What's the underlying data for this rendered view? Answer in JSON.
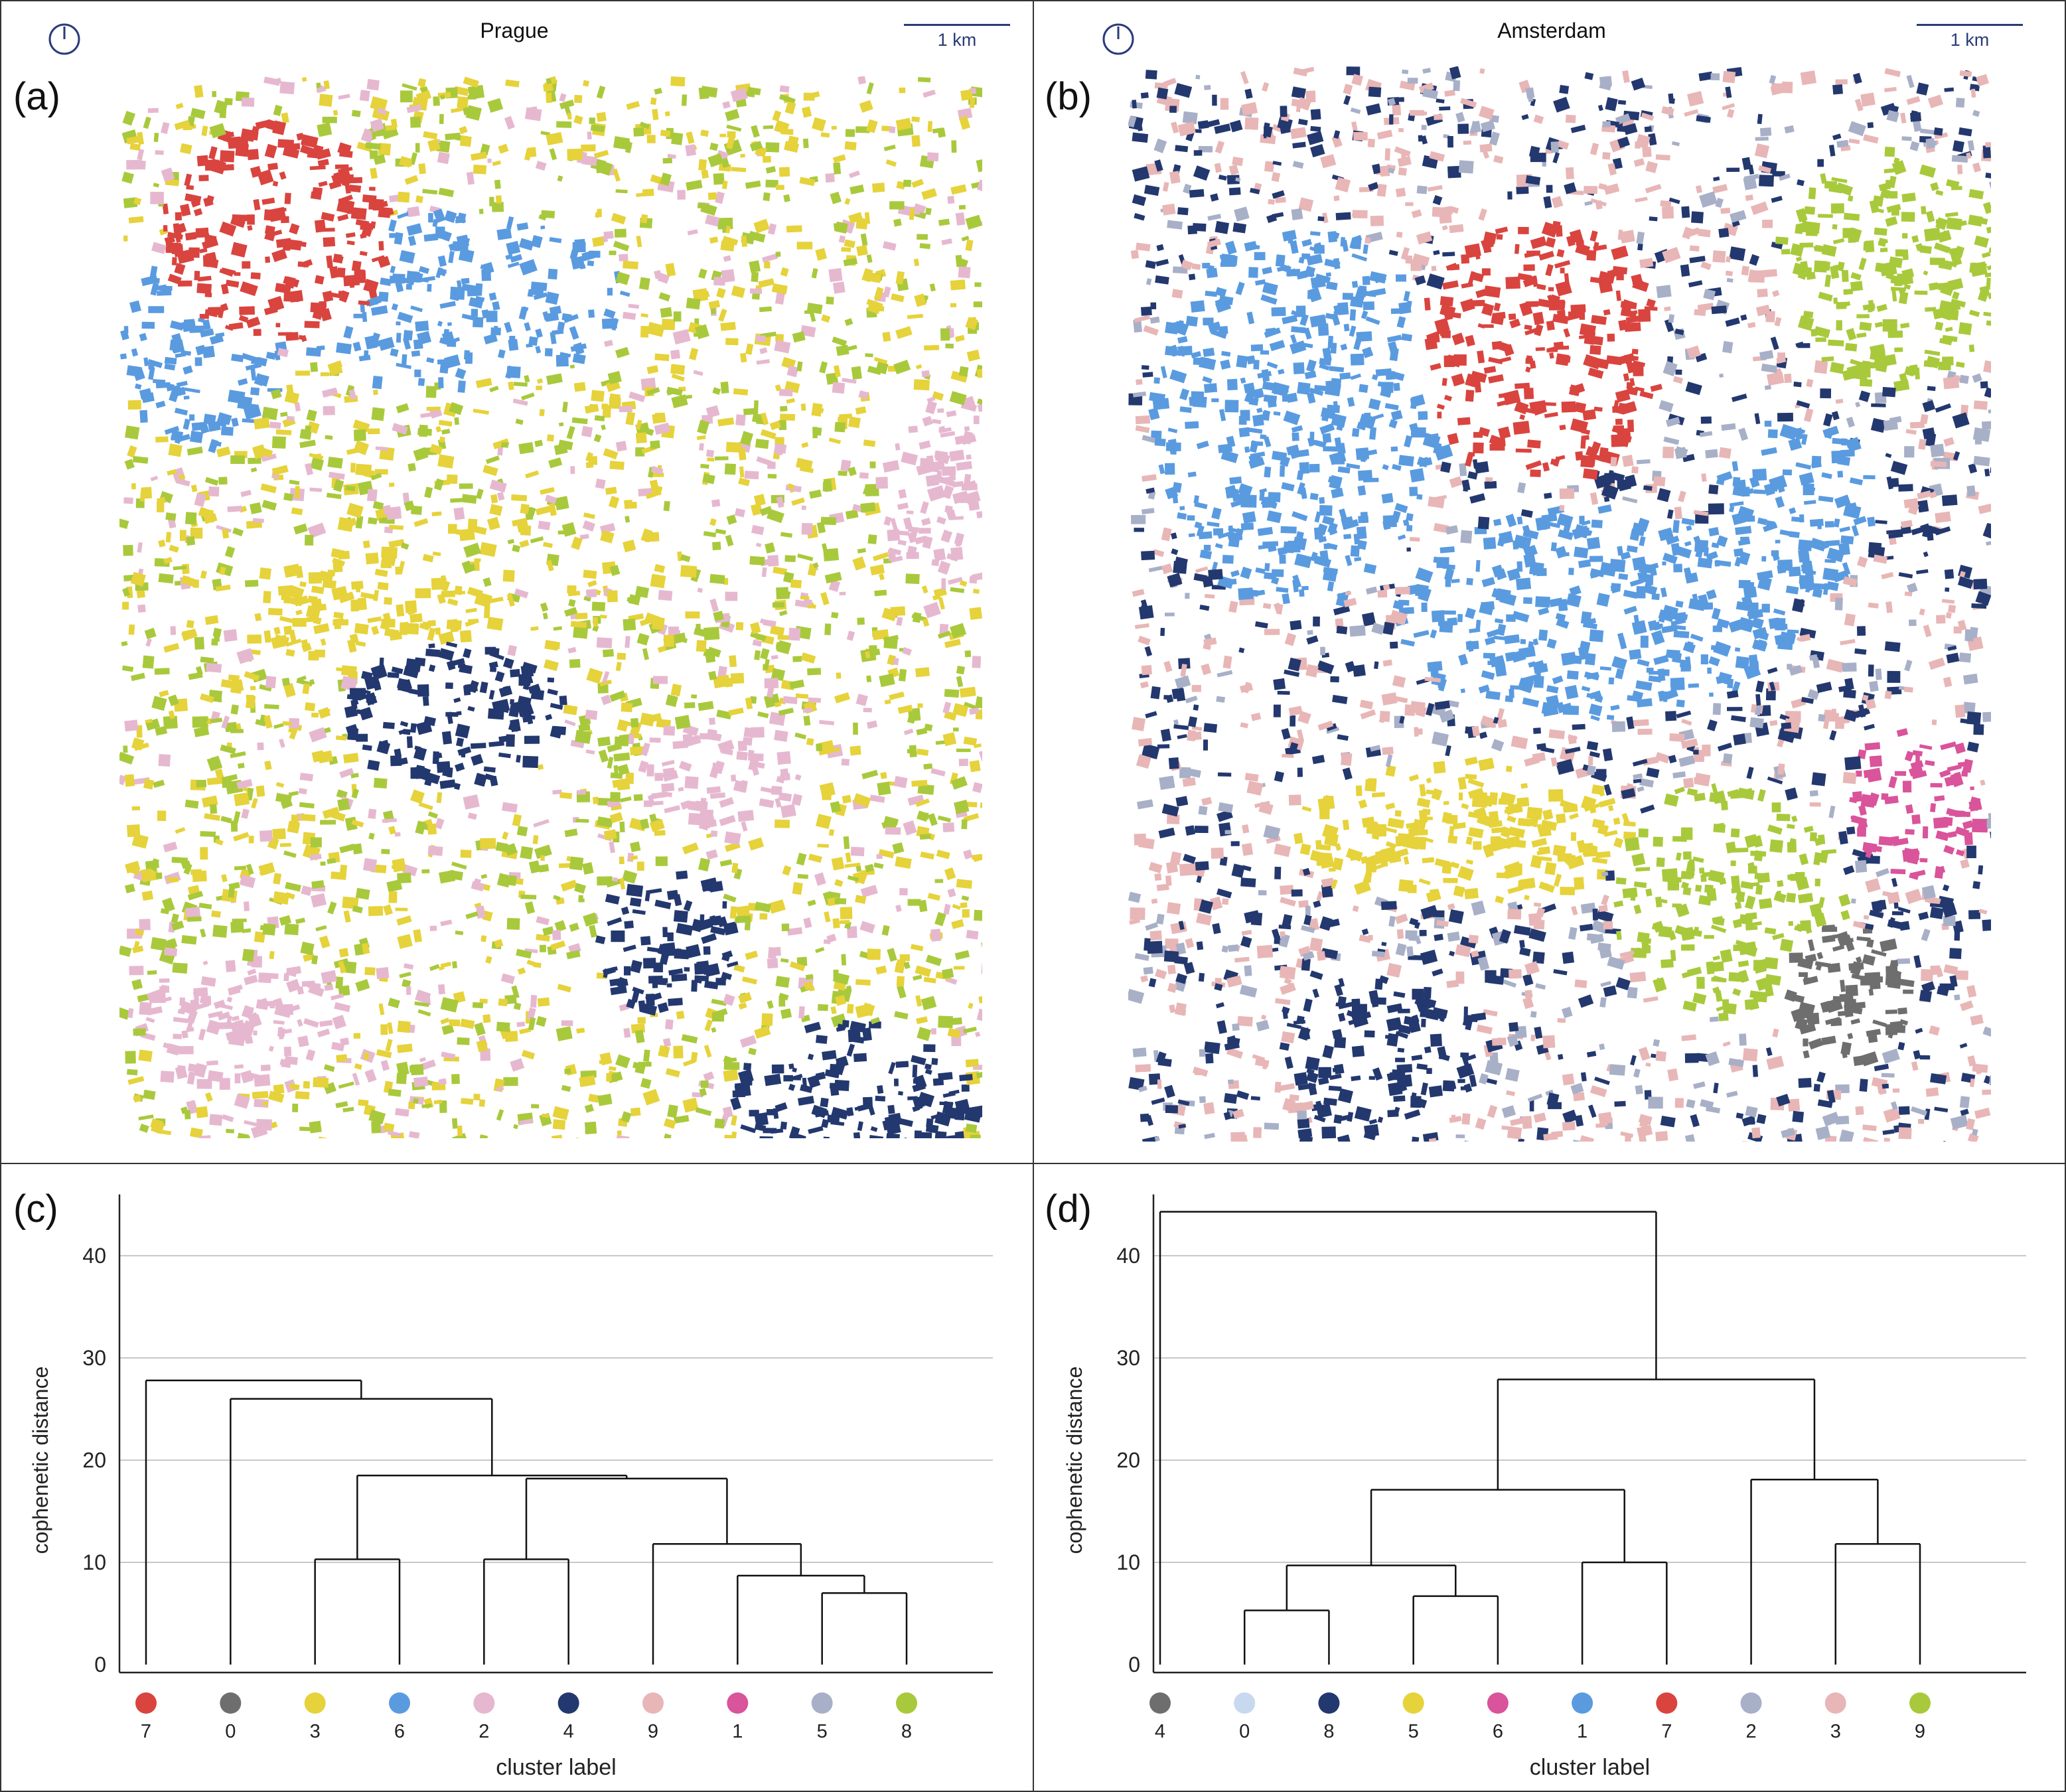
{
  "panels": {
    "a": {
      "label": "(a)",
      "city": "Prague",
      "scale_label": "1 km"
    },
    "b": {
      "label": "(b)",
      "city": "Amsterdam",
      "scale_label": "1 km"
    },
    "c": {
      "label": "(c)"
    },
    "d": {
      "label": "(d)"
    }
  },
  "icons": {
    "north_arrow": "north-arrow-icon"
  },
  "cluster_colors": {
    "0": "#6e6e6e",
    "1": "#d9549a",
    "2": "#e6b8d0",
    "3": "#e6d23a",
    "4": "#23386e",
    "5": "#a8b0c8",
    "6": "#5a9be0",
    "7": "#d9443f",
    "8": "#a9c93c",
    "9": "#e8b6b6"
  },
  "amsterdam_cluster_colors": {
    "0": "#c8d8ee",
    "1": "#5a9be0",
    "2": "#a8b0c8",
    "3": "#e8b6b6",
    "4": "#6e6e6e",
    "5": "#e6d23a",
    "6": "#d9549a",
    "7": "#d9443f",
    "8": "#23386e",
    "9": "#a9c93c"
  },
  "chart_data": [
    {
      "type": "dendrogram",
      "panel": "(c)",
      "xlabel": "cluster label",
      "ylabel": "cophenetic distance",
      "ylim": [
        0,
        47
      ],
      "yticks": [
        0,
        10,
        20,
        30,
        40
      ],
      "grid": true,
      "leaves": [
        "7",
        "0",
        "3",
        "6",
        "2",
        "4",
        "9",
        "1",
        "5",
        "8"
      ],
      "merges": [
        {
          "left": "5",
          "right": "8",
          "height": 7.0
        },
        {
          "left": "1",
          "right": "5+8",
          "height": 8.7
        },
        {
          "left": "9",
          "right": "1+5+8",
          "height": 11.8
        },
        {
          "left": "2",
          "right": "4",
          "height": 10.3
        },
        {
          "left": "3",
          "right": "6",
          "height": 10.3
        },
        {
          "left": "2+4",
          "right": "9+1+5+8",
          "height": 18.2
        },
        {
          "left": "3+6",
          "right": "2+4+9+1+5+8",
          "height": 18.5
        },
        {
          "left": "0",
          "right": "3+6+2+4+9+1+5+8",
          "height": 26.0
        },
        {
          "left": "7",
          "right": "0+...",
          "height": 27.8
        }
      ]
    },
    {
      "type": "dendrogram",
      "panel": "(d)",
      "xlabel": "cluster label",
      "ylabel": "cophenetic distance",
      "ylim": [
        0,
        47
      ],
      "yticks": [
        0,
        10,
        20,
        30,
        40
      ],
      "grid": true,
      "leaves": [
        "4",
        "0",
        "8",
        "5",
        "6",
        "1",
        "7",
        "2",
        "3",
        "9"
      ],
      "merges": [
        {
          "left": "0",
          "right": "8",
          "height": 5.3
        },
        {
          "left": "5",
          "right": "6",
          "height": 6.7
        },
        {
          "left": "0+8",
          "right": "5+6",
          "height": 9.7
        },
        {
          "left": "1",
          "right": "7",
          "height": 10.0
        },
        {
          "left": "0+8+5+6",
          "right": "1+7",
          "height": 17.1
        },
        {
          "left": "3",
          "right": "9",
          "height": 11.8
        },
        {
          "left": "2",
          "right": "3+9",
          "height": 18.1
        },
        {
          "left": "0+8+5+6+1+7",
          "right": "2+3+9",
          "height": 27.9
        },
        {
          "left": "4",
          "right": "rest",
          "height": 44.3
        }
      ]
    }
  ]
}
